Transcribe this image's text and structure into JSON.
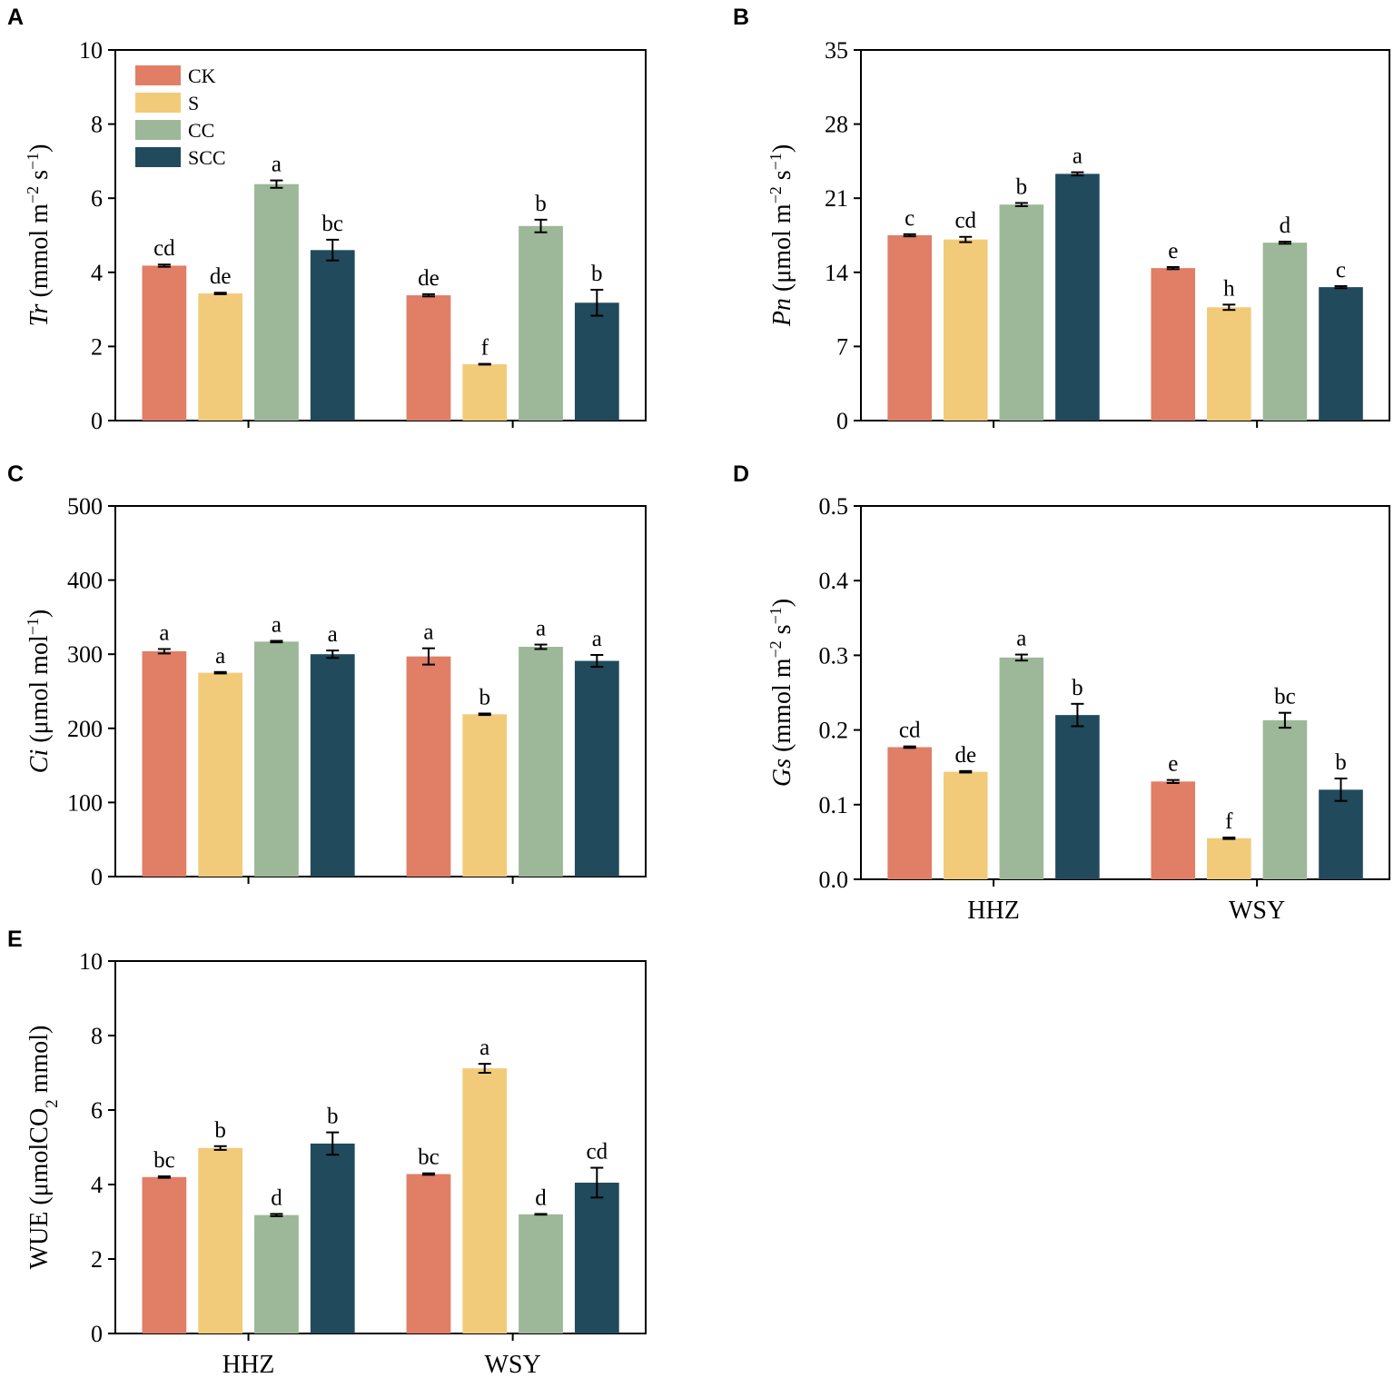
{
  "chart_data": [
    {
      "panel": "A",
      "type": "bar",
      "categories": [
        "HHZ",
        "WSY"
      ],
      "ylim": [
        0,
        10
      ],
      "yticks": [
        "0",
        "2",
        "4",
        "6",
        "8",
        "10"
      ],
      "ylabel_italic": "Tr",
      "ylabel_rest": " (mmol m",
      "ylabel_sup1": "−2",
      "ylabel_mid": " s",
      "ylabel_sup2": "−1",
      "ylabel_end": ")",
      "show_xlabels": false,
      "legend": [
        "CK",
        "S",
        "CC",
        "SCC"
      ],
      "series": [
        {
          "name": "CK",
          "values": [
            4.18,
            3.38
          ],
          "errors": [
            0.03,
            0.03
          ],
          "letters": [
            "cd",
            "de"
          ]
        },
        {
          "name": "S",
          "values": [
            3.43,
            1.52
          ],
          "errors": [
            0.02,
            0.01
          ],
          "letters": [
            "de",
            "f"
          ]
        },
        {
          "name": "CC",
          "values": [
            6.38,
            5.25
          ],
          "errors": [
            0.1,
            0.17
          ],
          "letters": [
            "a",
            "b"
          ]
        },
        {
          "name": "SCC",
          "values": [
            4.6,
            3.18
          ],
          "errors": [
            0.28,
            0.35
          ],
          "letters": [
            "bc",
            "b"
          ]
        }
      ]
    },
    {
      "panel": "B",
      "type": "bar",
      "categories": [
        "HHZ",
        "WSY"
      ],
      "ylim": [
        0,
        35
      ],
      "yticks": [
        "0",
        "7",
        "14",
        "21",
        "28",
        "35"
      ],
      "ylabel_italic": "Pn",
      "ylabel_rest": " (μmol m",
      "ylabel_sup1": "−2",
      "ylabel_mid": " s",
      "ylabel_sup2": "−1",
      "ylabel_end": ")",
      "show_xlabels": false,
      "series": [
        {
          "name": "CK",
          "values": [
            17.5,
            14.4
          ],
          "errors": [
            0.1,
            0.1
          ],
          "letters": [
            "c",
            "e"
          ]
        },
        {
          "name": "S",
          "values": [
            17.1,
            10.7
          ],
          "errors": [
            0.25,
            0.25
          ],
          "letters": [
            "cd",
            "h"
          ]
        },
        {
          "name": "CC",
          "values": [
            20.4,
            16.8
          ],
          "errors": [
            0.15,
            0.1
          ],
          "letters": [
            "b",
            "d"
          ]
        },
        {
          "name": "SCC",
          "values": [
            23.3,
            12.6
          ],
          "errors": [
            0.15,
            0.1
          ],
          "letters": [
            "a",
            "c"
          ]
        }
      ]
    },
    {
      "panel": "C",
      "type": "bar",
      "categories": [
        "HHZ",
        "WSY"
      ],
      "ylim": [
        0,
        500
      ],
      "yticks": [
        "0",
        "100",
        "200",
        "300",
        "400",
        "500"
      ],
      "ylabel_italic": "Ci",
      "ylabel_rest": " (μmol mol",
      "ylabel_sup1": "−1",
      "ylabel_mid": "",
      "ylabel_sup2": "",
      "ylabel_end": ")",
      "show_xlabels": false,
      "series": [
        {
          "name": "CK",
          "values": [
            304,
            297
          ],
          "errors": [
            3,
            11
          ],
          "letters": [
            "a",
            "a"
          ]
        },
        {
          "name": "S",
          "values": [
            275,
            219
          ],
          "errors": [
            1,
            1
          ],
          "letters": [
            "a",
            "b"
          ]
        },
        {
          "name": "CC",
          "values": [
            317,
            310
          ],
          "errors": [
            1,
            3
          ],
          "letters": [
            "a",
            "a"
          ]
        },
        {
          "name": "SCC",
          "values": [
            300,
            291
          ],
          "errors": [
            5,
            8
          ],
          "letters": [
            "a",
            "a"
          ]
        }
      ]
    },
    {
      "panel": "D",
      "type": "bar",
      "categories": [
        "HHZ",
        "WSY"
      ],
      "ylim": [
        0,
        0.5
      ],
      "yticks": [
        "0.0",
        "0.1",
        "0.2",
        "0.3",
        "0.4",
        "0.5"
      ],
      "ylabel_italic": "Gs",
      "ylabel_rest": " (mmol m",
      "ylabel_sup1": "−2",
      "ylabel_mid": " s",
      "ylabel_sup2": "−1",
      "ylabel_end": ")",
      "show_xlabels": true,
      "series": [
        {
          "name": "CK",
          "values": [
            0.177,
            0.131
          ],
          "errors": [
            0.001,
            0.002
          ],
          "letters": [
            "cd",
            "e"
          ]
        },
        {
          "name": "S",
          "values": [
            0.144,
            0.055
          ],
          "errors": [
            0.001,
            0.001
          ],
          "letters": [
            "de",
            "f"
          ]
        },
        {
          "name": "CC",
          "values": [
            0.297,
            0.213
          ],
          "errors": [
            0.004,
            0.01
          ],
          "letters": [
            "a",
            "bc"
          ]
        },
        {
          "name": "SCC",
          "values": [
            0.22,
            0.12
          ],
          "errors": [
            0.015,
            0.015
          ],
          "letters": [
            "b",
            "b"
          ]
        }
      ]
    },
    {
      "panel": "E",
      "type": "bar",
      "categories": [
        "HHZ",
        "WSY"
      ],
      "ylim": [
        0,
        10
      ],
      "yticks": [
        "0",
        "2",
        "4",
        "6",
        "8",
        "10"
      ],
      "ylabel_italic": "",
      "ylabel_rest": "WUE (μmolCO",
      "ylabel_sub": "2",
      "ylabel_rest2": " mmol)",
      "show_xlabels": true,
      "series": [
        {
          "name": "CK",
          "values": [
            4.2,
            4.28
          ],
          "errors": [
            0.02,
            0.02
          ],
          "letters": [
            "bc",
            "bc"
          ]
        },
        {
          "name": "S",
          "values": [
            4.98,
            7.12
          ],
          "errors": [
            0.05,
            0.12
          ],
          "letters": [
            "b",
            "a"
          ]
        },
        {
          "name": "CC",
          "values": [
            3.18,
            3.2
          ],
          "errors": [
            0.03,
            0.01
          ],
          "letters": [
            "d",
            "d"
          ]
        },
        {
          "name": "SCC",
          "values": [
            5.1,
            4.05
          ],
          "errors": [
            0.3,
            0.4
          ],
          "letters": [
            "b",
            "cd"
          ]
        }
      ]
    }
  ],
  "colors": {
    "CK": "#e07e66",
    "S": "#f2cb7a",
    "CC": "#9cb898",
    "SCC": "#214a5d"
  }
}
